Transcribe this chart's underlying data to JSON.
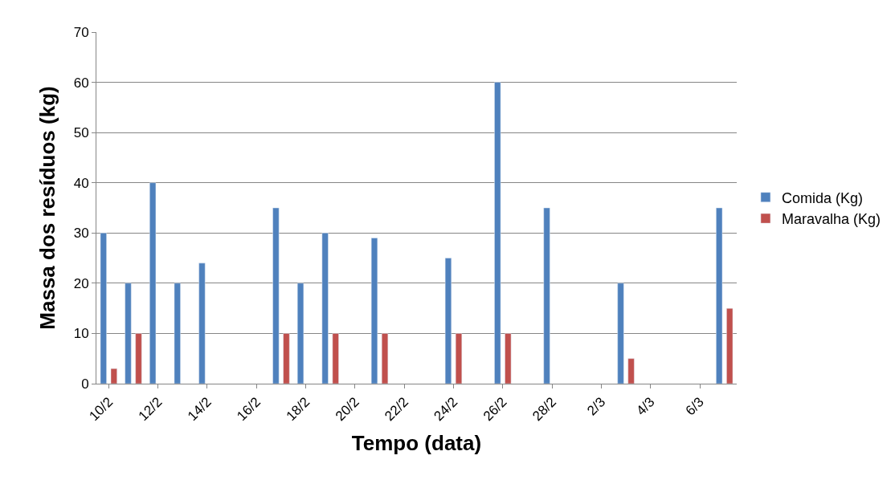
{
  "chart_data": {
    "type": "bar",
    "xlabel": "Tempo (data)",
    "ylabel": "Massa dos resíduos (kg)",
    "categories": [
      "10/2",
      null,
      "12/2",
      null,
      "14/2",
      null,
      "16/2",
      null,
      "18/2",
      null,
      "20/2",
      null,
      "22/2",
      null,
      "24/2",
      null,
      "26/2",
      null,
      "28/2",
      null,
      "2/3",
      null,
      "4/3",
      null,
      "6/3",
      null
    ],
    "series": [
      {
        "name": "Comida (Kg)",
        "color": "#4f81bd",
        "values": [
          30,
          20,
          40,
          20,
          24,
          null,
          null,
          35,
          20,
          30,
          null,
          29,
          null,
          null,
          25,
          null,
          60,
          null,
          35,
          null,
          null,
          20,
          null,
          null,
          null,
          35
        ]
      },
      {
        "name": "Maravalha (Kg)",
        "color": "#c0504d",
        "values": [
          3,
          10,
          null,
          null,
          null,
          null,
          null,
          10,
          null,
          10,
          null,
          10,
          null,
          null,
          10,
          null,
          10,
          null,
          null,
          null,
          null,
          5,
          null,
          null,
          null,
          15
        ]
      }
    ],
    "ylim": [
      0,
      70
    ],
    "yticks": [
      0,
      10,
      20,
      30,
      40,
      50,
      60,
      70
    ],
    "grid": "y",
    "legend": "right"
  }
}
